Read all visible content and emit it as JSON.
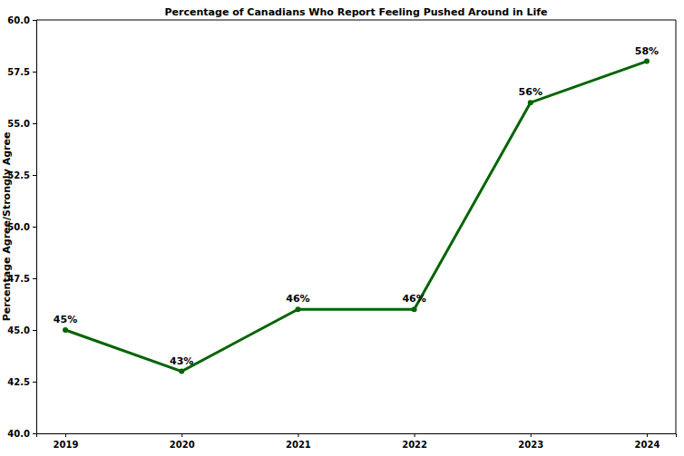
{
  "chart_data": {
    "type": "line",
    "title": "Percentage of Canadians Who Report Feeling Pushed Around in Life",
    "y_label": "Percentage Agree/Strongly Agree",
    "categories": [
      "2019",
      "2020",
      "2021",
      "2022",
      "2023",
      "2024"
    ],
    "values": [
      45,
      43,
      46,
      46,
      56,
      58
    ],
    "value_labels": [
      "45%",
      "43%",
      "46%",
      "46%",
      "56%",
      "58%"
    ],
    "color": "#006400",
    "marker": "circle",
    "line_style": "solid",
    "data_labels": true,
    "grid": false,
    "ylim": [
      40,
      60
    ],
    "yticks": [
      {
        "value": 40,
        "label": "40.0"
      },
      42.5,
      {
        "value": 45,
        "label": "45.0"
      },
      47.5,
      {
        "value": 50,
        "label": "50.0"
      },
      52.5,
      {
        "value": 55,
        "label": "55.0"
      },
      57.5,
      {
        "value": 60,
        "label": "60.0"
      }
    ]
  }
}
